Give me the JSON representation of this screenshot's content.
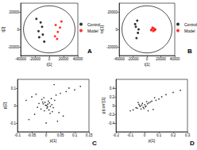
{
  "chart_data": [
    {
      "type": "scatter",
      "title": "A",
      "x_label": "t[1]",
      "y_label": "t[2]",
      "xlim": [
        -40000,
        40000
      ],
      "xticks": [
        -40000,
        -20000,
        0,
        20000,
        40000
      ],
      "ylim": [
        -30000,
        30000
      ],
      "yticks": [
        -20000,
        0,
        20000
      ],
      "legend": "right",
      "ellipse": {
        "center": [
          0,
          0
        ],
        "x_radius": 36000,
        "y_radius": 27000
      },
      "series": [
        {
          "name": "Control",
          "color": "#000000",
          "x": [
            -12000,
            -15000,
            -9000,
            -18000,
            -10000,
            -14000,
            -7000
          ],
          "values": [
            8000,
            -2000,
            -6000,
            12000,
            3000,
            -9000,
            -14000
          ]
        },
        {
          "name": "Model",
          "color": "#ff0000",
          "x": [
            9000,
            12000,
            15000,
            8000,
            17000,
            11000
          ],
          "values": [
            5000,
            -3000,
            2000,
            -8000,
            9000,
            -11000
          ]
        }
      ]
    },
    {
      "type": "scatter",
      "title": "B",
      "x_label": "t[1]",
      "y_label": "to[1]",
      "xlim": [
        -40000,
        40000
      ],
      "xticks": [
        -40000,
        -20000,
        0,
        20000,
        40000
      ],
      "ylim": [
        -30000,
        30000
      ],
      "yticks": [
        -20000,
        0,
        20000
      ],
      "legend": "right",
      "ellipse": {
        "center": [
          0,
          0
        ],
        "x_radius": 36000,
        "y_radius": 27000
      },
      "series": [
        {
          "name": "Control",
          "color": "#000000",
          "x": [
            -14000,
            -16000,
            -13000,
            -15000,
            -12000,
            -17000
          ],
          "values": [
            10000,
            3000,
            -4000,
            -10000,
            0,
            6000
          ]
        },
        {
          "name": "Model",
          "color": "#ff0000",
          "x": [
            6000,
            8000,
            9000,
            10000,
            7000,
            11000,
            12000
          ],
          "values": [
            -1000,
            2000,
            -2000,
            1000,
            0,
            -1000,
            0
          ]
        }
      ]
    },
    {
      "type": "scatter",
      "title": "C",
      "x_label": "p[1]",
      "y_label": "p[2]",
      "xlim": [
        -0.1,
        0.15
      ],
      "xticks": [
        -0.1,
        -0.05,
        0,
        0.05,
        0.1,
        0.15
      ],
      "ylim": [
        -0.15,
        0.15
      ],
      "yticks": [
        -0.1,
        0,
        0.1
      ],
      "series": [
        {
          "color": "#000000",
          "x": [
            -0.01,
            0.005,
            0.012,
            -0.018,
            0.02,
            -0.025,
            0.003,
            0.008,
            -0.006,
            0.015,
            -0.012,
            0.025,
            0.03,
            -0.03,
            0.018,
            -0.002,
            0.01,
            -0.015,
            0.022,
            0.006,
            -0.008,
            0.035,
            -0.04,
            0.045,
            0.05,
            -0.05,
            0.06,
            0.07,
            -0.06,
            0.08,
            0.1,
            0.12,
            -0.07,
            0.04,
            -0.035,
            0.028,
            0.0,
            0.002,
            -0.004,
            0.014
          ],
          "values": [
            0.01,
            -0.008,
            0.015,
            -0.02,
            0.005,
            0.012,
            -0.015,
            0.025,
            -0.03,
            -0.005,
            0.02,
            -0.012,
            0.03,
            -0.01,
            0.04,
            0.002,
            -0.025,
            0.035,
            -0.035,
            0.008,
            0.045,
            0.06,
            -0.05,
            -0.04,
            0.07,
            0.05,
            -0.06,
            0.08,
            -0.08,
            0.1,
            0.09,
            0.11,
            0.03,
            -0.09,
            0.065,
            0.12,
            -0.1,
            0.0,
            0.018,
            -0.045
          ]
        }
      ]
    },
    {
      "type": "scatter",
      "title": "D",
      "x_label": "p[1]",
      "y_label": "p(corr)[1]",
      "xlim": [
        -0.2,
        0.3
      ],
      "xticks": [
        -0.2,
        -0.1,
        0,
        0.1,
        0.2,
        0.3
      ],
      "ylim": [
        -0.6,
        0.6
      ],
      "yticks": [
        -0.4,
        -0.2,
        0,
        0.2,
        0.4
      ],
      "series": [
        {
          "color": "#000000",
          "x": [
            -0.03,
            -0.02,
            -0.01,
            0,
            0.01,
            -0.04,
            -0.05,
            0.02,
            -0.025,
            -0.015,
            0.005,
            -0.035,
            0.03,
            -0.06,
            0.04,
            0.05,
            0.08,
            0.1,
            0.12,
            0.15,
            0.2,
            -0.08,
            -0.1,
            0.06,
            0.025,
            -0.045,
            0.015,
            -0.005,
            0.07,
            0.25
          ],
          "values": [
            -0.02,
            0.01,
            -0.04,
            0.02,
            -0.01,
            0.03,
            -0.06,
            0.04,
            -0.08,
            0.05,
            -0.03,
            0.0,
            0.06,
            -0.05,
            0.08,
            0.1,
            0.12,
            0.15,
            0.2,
            0.25,
            0.3,
            -0.1,
            -0.12,
            -0.09,
            -0.12,
            0.07,
            0.09,
            -0.07,
            0.18,
            0.35
          ]
        }
      ]
    }
  ]
}
